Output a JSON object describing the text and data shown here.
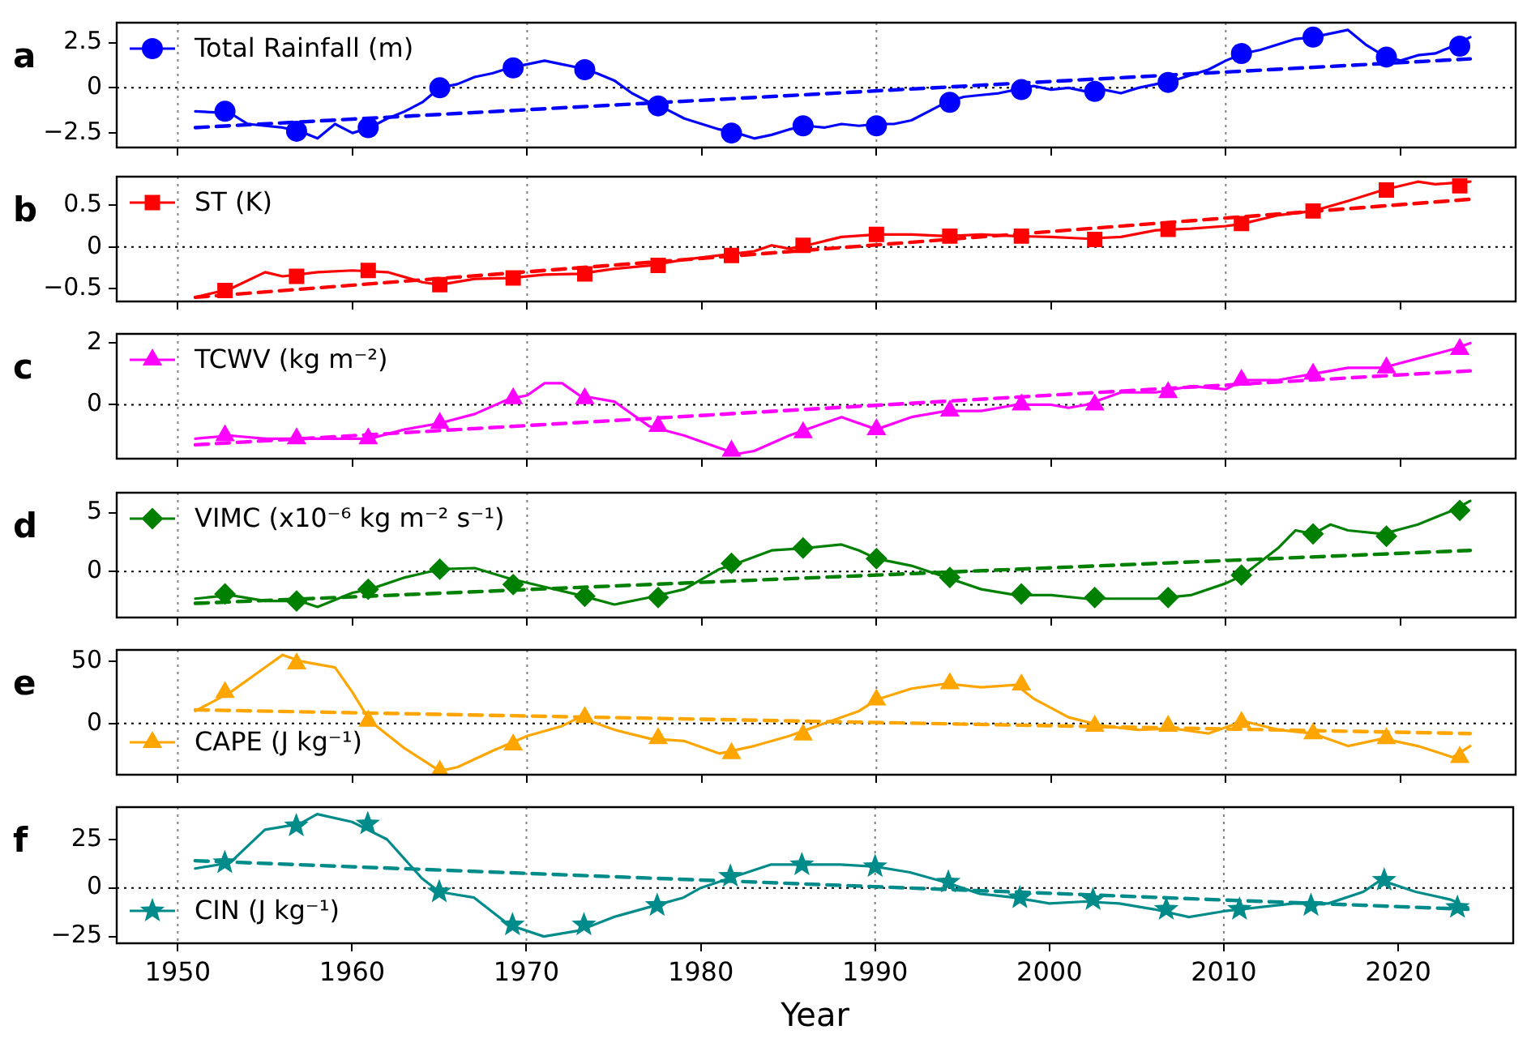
{
  "chart_data": [
    {
      "type": "line",
      "title": "a",
      "xlim": [
        1946.5,
        2026.6
      ],
      "xticks": [
        1950,
        1960,
        1970,
        1980,
        1990,
        2000,
        2010,
        2020
      ],
      "ylim": [
        -3.3,
        3.6
      ],
      "yticks": [
        -2.5,
        0.0,
        2.5
      ],
      "tick_labels": "y",
      "legend": "top left",
      "marker": "circle",
      "ref_lines": [
        {
          "axis": "x",
          "value": 1950,
          "color": "#808080",
          "line_style": "dotted"
        },
        {
          "axis": "x",
          "value": 1970,
          "color": "#808080",
          "line_style": "dotted"
        },
        {
          "axis": "x",
          "value": 1990,
          "color": "#808080",
          "line_style": "dotted"
        },
        {
          "axis": "x",
          "value": 2010,
          "color": "#808080",
          "line_style": "dotted"
        },
        {
          "axis": "y",
          "value": 0,
          "color": "#000000",
          "line_style": "dotted"
        }
      ],
      "series": [
        {
          "type": "line",
          "name": "Total Rainfall (m)",
          "marker": "none",
          "color": "#0000ff",
          "x": [
            1951,
            1953,
            1954,
            1956,
            1957,
            1958,
            1959,
            1960,
            1961,
            1962,
            1963,
            1964,
            1965,
            1966,
            1967,
            1968,
            1969,
            1970,
            1971,
            1972,
            1973,
            1974,
            1975,
            1976,
            1977,
            1978,
            1979,
            1980,
            1981,
            1982,
            1983,
            1984,
            1985,
            1986,
            1987,
            1988,
            1989,
            1990,
            1991,
            1992,
            1993,
            1994,
            1995,
            1996,
            1997,
            1998,
            1999,
            2000,
            2001,
            2002,
            2003,
            2004,
            2005,
            2006,
            2007,
            2008,
            2009,
            2010,
            2011,
            2012,
            2013,
            2014,
            2015,
            2016,
            2017,
            2018,
            2019,
            2020,
            2021,
            2022,
            2023,
            2024
          ],
          "values": [
            -1.3,
            -1.4,
            -2.0,
            -2.2,
            -2.4,
            -2.8,
            -2.0,
            -2.5,
            -2.2,
            -1.7,
            -1.3,
            -0.8,
            0.0,
            0.2,
            0.6,
            0.8,
            1.1,
            1.3,
            1.5,
            1.3,
            1.1,
            0.8,
            0.4,
            -0.3,
            -0.8,
            -1.2,
            -1.7,
            -2.0,
            -2.3,
            -2.5,
            -2.8,
            -2.6,
            -2.3,
            -2.1,
            -2.2,
            -2.0,
            -2.1,
            -2.0,
            -2.0,
            -1.8,
            -1.3,
            -0.8,
            -0.5,
            -0.4,
            -0.3,
            -0.1,
            0.1,
            -0.1,
            0.0,
            -0.2,
            -0.1,
            -0.3,
            0.0,
            0.2,
            0.4,
            0.7,
            1.0,
            1.5,
            1.9,
            2.1,
            2.4,
            2.7,
            2.8,
            3.0,
            3.2,
            2.4,
            1.8,
            1.5,
            1.8,
            1.9,
            2.3,
            2.8
          ]
        },
        {
          "type": "scatter",
          "color": "#0000ff",
          "x": [
            1952.7,
            1956.8,
            1960.9,
            1965.0,
            1969.2,
            1973.3,
            1977.5,
            1981.7,
            1985.8,
            1990.0,
            1994.2,
            1998.3,
            2002.5,
            2006.7,
            2010.9,
            2015.0,
            2019.2,
            2023.4
          ],
          "values": [
            -1.3,
            -2.4,
            -2.2,
            0.0,
            1.1,
            1.0,
            -1.0,
            -2.5,
            -2.1,
            -2.1,
            -0.8,
            -0.1,
            -0.2,
            0.3,
            1.9,
            2.8,
            1.7,
            2.3
          ]
        },
        {
          "type": "line",
          "marker": "none",
          "color": "#0000ff",
          "line_style": "dashed",
          "x": [
            1951,
            2024
          ],
          "values": [
            -2.2,
            1.6
          ]
        }
      ]
    },
    {
      "type": "line",
      "title": "b",
      "xlim": [
        1946.5,
        2026.6
      ],
      "xticks": [
        1950,
        1960,
        1970,
        1980,
        1990,
        2000,
        2010,
        2020
      ],
      "ylim": [
        -0.65,
        0.84
      ],
      "yticks": [
        -0.5,
        0.0,
        0.5
      ],
      "tick_labels": "y",
      "legend": "top left",
      "marker": "square",
      "ref_lines": [
        {
          "axis": "x",
          "value": 1950,
          "color": "#808080",
          "line_style": "dotted"
        },
        {
          "axis": "x",
          "value": 1970,
          "color": "#808080",
          "line_style": "dotted"
        },
        {
          "axis": "x",
          "value": 1990,
          "color": "#808080",
          "line_style": "dotted"
        },
        {
          "axis": "x",
          "value": 2010,
          "color": "#808080",
          "line_style": "dotted"
        },
        {
          "axis": "y",
          "value": 0,
          "color": "#000000",
          "line_style": "dotted"
        }
      ],
      "series": [
        {
          "type": "line",
          "name": "ST (K)",
          "marker": "none",
          "color": "#ff0000",
          "x": [
            1951,
            1953,
            1955,
            1956,
            1958,
            1960,
            1962,
            1964,
            1965,
            1967,
            1969,
            1971,
            1973,
            1975,
            1977,
            1979,
            1981,
            1983,
            1984,
            1985,
            1986,
            1988,
            1990,
            1992,
            1994,
            1996,
            1998,
            2000,
            2002,
            2004,
            2006,
            2008,
            2010,
            2011,
            2013,
            2015,
            2017,
            2019,
            2021,
            2022,
            2024
          ],
          "values": [
            -0.6,
            -0.5,
            -0.3,
            -0.35,
            -0.3,
            -0.28,
            -0.3,
            -0.42,
            -0.45,
            -0.38,
            -0.37,
            -0.33,
            -0.32,
            -0.26,
            -0.22,
            -0.15,
            -0.1,
            -0.05,
            0.02,
            -0.02,
            0.02,
            0.12,
            0.15,
            0.15,
            0.13,
            0.15,
            0.13,
            0.12,
            0.1,
            0.12,
            0.2,
            0.22,
            0.25,
            0.28,
            0.38,
            0.43,
            0.55,
            0.68,
            0.78,
            0.75,
            0.78
          ]
        },
        {
          "type": "scatter",
          "color": "#ff0000",
          "x": [
            1952.7,
            1956.8,
            1960.9,
            1965.0,
            1969.2,
            1973.3,
            1977.5,
            1981.7,
            1985.8,
            1990.0,
            1994.2,
            1998.3,
            2002.5,
            2006.7,
            2010.9,
            2015.0,
            2019.2,
            2023.4
          ],
          "values": [
            -0.52,
            -0.35,
            -0.28,
            -0.45,
            -0.37,
            -0.32,
            -0.22,
            -0.1,
            0.02,
            0.15,
            0.13,
            0.13,
            0.09,
            0.21,
            0.28,
            0.43,
            0.68,
            0.73
          ]
        },
        {
          "type": "line",
          "marker": "none",
          "color": "#ff0000",
          "line_style": "dashed",
          "x": [
            1951,
            2024
          ],
          "values": [
            -0.6,
            0.57
          ]
        }
      ]
    },
    {
      "type": "line",
      "title": "c",
      "xlim": [
        1946.5,
        2026.6
      ],
      "xticks": [
        1950,
        1960,
        1970,
        1980,
        1990,
        2000,
        2010,
        2020
      ],
      "ylim": [
        -1.75,
        2.3
      ],
      "yticks": [
        0,
        2
      ],
      "tick_labels": "y",
      "legend": "top left",
      "marker": "triangle",
      "ref_lines": [
        {
          "axis": "x",
          "value": 1950,
          "color": "#808080",
          "line_style": "dotted"
        },
        {
          "axis": "x",
          "value": 1970,
          "color": "#808080",
          "line_style": "dotted"
        },
        {
          "axis": "x",
          "value": 1990,
          "color": "#808080",
          "line_style": "dotted"
        },
        {
          "axis": "x",
          "value": 2010,
          "color": "#808080",
          "line_style": "dotted"
        },
        {
          "axis": "y",
          "value": 0,
          "color": "#000000",
          "line_style": "dotted"
        }
      ],
      "series": [
        {
          "type": "line",
          "name": "TCWV (kg m⁻²)",
          "marker": "none",
          "color": "#ff00ff",
          "x": [
            1951,
            1953,
            1955,
            1957,
            1959,
            1961,
            1963,
            1965,
            1967,
            1969,
            1970,
            1971,
            1972,
            1973,
            1975,
            1977,
            1979,
            1981,
            1982,
            1983,
            1985,
            1987,
            1988,
            1990,
            1992,
            1994,
            1996,
            1998,
            2000,
            2001,
            2002,
            2004,
            2006,
            2008,
            2010,
            2011,
            2013,
            2015,
            2017,
            2019,
            2021,
            2023,
            2024
          ],
          "values": [
            -1.1,
            -1.0,
            -1.1,
            -1.1,
            -1.1,
            -1.1,
            -0.8,
            -0.6,
            -0.3,
            0.2,
            0.3,
            0.7,
            0.7,
            0.3,
            0.1,
            -0.7,
            -1.0,
            -1.4,
            -1.6,
            -1.5,
            -1.0,
            -0.6,
            -0.4,
            -0.8,
            -0.4,
            -0.2,
            -0.2,
            0.0,
            0.0,
            -0.1,
            0.0,
            0.4,
            0.4,
            0.6,
            0.5,
            0.8,
            0.8,
            1.0,
            1.2,
            1.2,
            1.5,
            1.8,
            2.0
          ]
        },
        {
          "type": "scatter",
          "color": "#ff00ff",
          "x": [
            1952.7,
            1956.8,
            1960.9,
            1965.0,
            1969.2,
            1973.3,
            1977.5,
            1981.7,
            1985.8,
            1990.0,
            1994.2,
            1998.3,
            2002.5,
            2006.7,
            2010.9,
            2015.0,
            2019.2,
            2023.4
          ],
          "values": [
            -1.0,
            -1.1,
            -1.1,
            -0.6,
            0.2,
            0.2,
            -0.7,
            -1.5,
            -0.9,
            -0.8,
            -0.2,
            0.0,
            0.0,
            0.4,
            0.8,
            1.0,
            1.2,
            1.8
          ]
        },
        {
          "type": "line",
          "marker": "none",
          "color": "#ff00ff",
          "line_style": "dashed",
          "x": [
            1951,
            2024
          ],
          "values": [
            -1.3,
            1.1
          ]
        }
      ]
    },
    {
      "type": "line",
      "title": "d",
      "xlim": [
        1946.5,
        2026.6
      ],
      "xticks": [
        1950,
        1960,
        1970,
        1980,
        1990,
        2000,
        2010,
        2020
      ],
      "ylim": [
        -3.9,
        6.7
      ],
      "yticks": [
        0,
        5
      ],
      "tick_labels": "y",
      "legend": "top left",
      "marker": "diamond",
      "ref_lines": [
        {
          "axis": "x",
          "value": 1950,
          "color": "#808080",
          "line_style": "dotted"
        },
        {
          "axis": "x",
          "value": 1970,
          "color": "#808080",
          "line_style": "dotted"
        },
        {
          "axis": "x",
          "value": 1990,
          "color": "#808080",
          "line_style": "dotted"
        },
        {
          "axis": "x",
          "value": 2010,
          "color": "#808080",
          "line_style": "dotted"
        },
        {
          "axis": "y",
          "value": 0,
          "color": "#000000",
          "line_style": "dotted"
        }
      ],
      "series": [
        {
          "type": "line",
          "name": "VIMC (x10⁻⁶ kg m⁻² s⁻¹)",
          "marker": "none",
          "color": "#008000",
          "x": [
            1951,
            1953,
            1955,
            1957,
            1958,
            1960,
            1961,
            1963,
            1965,
            1967,
            1969,
            1971,
            1973,
            1975,
            1977,
            1979,
            1981,
            1982,
            1984,
            1986,
            1988,
            1989,
            1990,
            1992,
            1994,
            1996,
            1998,
            2000,
            2002,
            2004,
            2006,
            2008,
            2010,
            2011,
            2013,
            2014,
            2015,
            2016,
            2017,
            2019,
            2021,
            2023,
            2024
          ],
          "values": [
            -2.3,
            -2.0,
            -2.5,
            -2.5,
            -3.0,
            -1.8,
            -1.5,
            -0.5,
            0.2,
            0.3,
            -0.6,
            -1.3,
            -2.0,
            -2.8,
            -2.2,
            -1.5,
            0.2,
            0.7,
            1.8,
            2.0,
            2.3,
            1.8,
            1.1,
            0.5,
            -0.5,
            -1.5,
            -2.0,
            -2.0,
            -2.3,
            -2.3,
            -2.3,
            -2.0,
            -1.0,
            -0.3,
            2.0,
            3.5,
            3.2,
            4.0,
            3.5,
            3.2,
            4.0,
            5.2,
            6.0
          ]
        },
        {
          "type": "scatter",
          "color": "#008000",
          "x": [
            1952.7,
            1956.8,
            1960.9,
            1965.0,
            1969.2,
            1973.3,
            1977.5,
            1981.7,
            1985.8,
            1990.0,
            1994.2,
            1998.3,
            2002.5,
            2006.7,
            2010.9,
            2015.0,
            2019.2,
            2023.4
          ],
          "values": [
            -1.9,
            -2.5,
            -1.5,
            0.2,
            -1.1,
            -2.1,
            -2.2,
            0.7,
            2.0,
            1.1,
            -0.5,
            -1.9,
            -2.2,
            -2.2,
            -0.3,
            3.2,
            3.0,
            5.2
          ]
        },
        {
          "type": "line",
          "marker": "none",
          "color": "#008000",
          "line_style": "dashed",
          "x": [
            1951,
            2024
          ],
          "values": [
            -2.7,
            1.8
          ]
        }
      ]
    },
    {
      "type": "line",
      "title": "e",
      "xlim": [
        1946.5,
        2026.6
      ],
      "xticks": [
        1950,
        1960,
        1970,
        1980,
        1990,
        2000,
        2010,
        2020
      ],
      "ylim": [
        -41,
        59
      ],
      "yticks": [
        0,
        50
      ],
      "tick_labels": "y",
      "legend": "bottom left",
      "marker": "triangle",
      "ref_lines": [
        {
          "axis": "x",
          "value": 1950,
          "color": "#808080",
          "line_style": "dotted"
        },
        {
          "axis": "x",
          "value": 1970,
          "color": "#808080",
          "line_style": "dotted"
        },
        {
          "axis": "x",
          "value": 1990,
          "color": "#808080",
          "line_style": "dotted"
        },
        {
          "axis": "x",
          "value": 2010,
          "color": "#808080",
          "line_style": "dotted"
        },
        {
          "axis": "y",
          "value": 0,
          "color": "#000000",
          "line_style": "dotted"
        }
      ],
      "series": [
        {
          "type": "line",
          "name": "CAPE (J kg⁻¹)",
          "marker": "none",
          "color": "#ffa500",
          "x": [
            1951,
            1953,
            1955,
            1956,
            1957,
            1959,
            1960,
            1961,
            1963,
            1965,
            1966,
            1968,
            1970,
            1972,
            1973,
            1975,
            1977,
            1979,
            1981,
            1983,
            1985,
            1987,
            1989,
            1990,
            1992,
            1994,
            1996,
            1998,
            1999,
            2001,
            2003,
            2005,
            2007,
            2009,
            2011,
            2013,
            2015,
            2017,
            2019,
            2021,
            2023,
            2024
          ],
          "values": [
            10,
            25,
            45,
            55,
            50,
            45,
            25,
            2,
            -20,
            -38,
            -35,
            -22,
            -10,
            -2,
            5,
            -5,
            -12,
            -14,
            -24,
            -18,
            -10,
            0,
            10,
            19,
            28,
            32,
            29,
            31,
            20,
            5,
            -2,
            -5,
            -4,
            -8,
            2,
            -5,
            -8,
            -18,
            -12,
            -18,
            -27,
            -18
          ]
        },
        {
          "type": "scatter",
          "color": "#ffa500",
          "x": [
            1952.7,
            1956.8,
            1960.9,
            1965.0,
            1969.2,
            1973.3,
            1977.5,
            1981.7,
            1985.8,
            1990.0,
            1994.2,
            1998.3,
            2002.5,
            2006.7,
            2010.9,
            2015.0,
            2019.2,
            2023.4
          ],
          "values": [
            25,
            48,
            2,
            -38,
            -17,
            5,
            -12,
            -24,
            -9,
            19,
            32,
            31,
            -2,
            -2,
            1,
            -8,
            -12,
            -27
          ]
        },
        {
          "type": "line",
          "marker": "none",
          "color": "#ffa500",
          "line_style": "dashed",
          "x": [
            1951,
            2024
          ],
          "values": [
            11,
            -8
          ]
        }
      ]
    },
    {
      "type": "line",
      "title": "f",
      "xlabel": "Year",
      "xlim": [
        1946.5,
        2026.6
      ],
      "xticks": [
        1950,
        1960,
        1970,
        1980,
        1990,
        2000,
        2010,
        2020
      ],
      "ylim": [
        -28.5,
        41.6
      ],
      "yticks": [
        -25,
        0,
        25
      ],
      "legend": "bottom left",
      "marker": "star",
      "ref_lines": [
        {
          "axis": "x",
          "value": 1950,
          "color": "#808080",
          "line_style": "dotted"
        },
        {
          "axis": "x",
          "value": 1970,
          "color": "#808080",
          "line_style": "dotted"
        },
        {
          "axis": "x",
          "value": 1990,
          "color": "#808080",
          "line_style": "dotted"
        },
        {
          "axis": "x",
          "value": 2010,
          "color": "#808080",
          "line_style": "dotted"
        },
        {
          "axis": "y",
          "value": 0,
          "color": "#000000",
          "line_style": "dotted"
        }
      ],
      "series": [
        {
          "type": "line",
          "name": "CIN (J kg⁻¹)",
          "marker": "none",
          "color": "#008b8b",
          "x": [
            1951,
            1953,
            1955,
            1957,
            1958,
            1960,
            1962,
            1964,
            1965,
            1967,
            1969,
            1971,
            1973,
            1975,
            1977,
            1979,
            1980,
            1982,
            1984,
            1986,
            1988,
            1990,
            1992,
            1994,
            1996,
            1998,
            2000,
            2002,
            2004,
            2006,
            2008,
            2010,
            2012,
            2014,
            2016,
            2018,
            2019,
            2021,
            2023,
            2024
          ],
          "values": [
            10,
            13,
            30,
            33,
            38,
            34,
            25,
            5,
            -2,
            -5,
            -19,
            -25,
            -22,
            -15,
            -10,
            -5,
            0,
            6,
            12,
            12,
            12,
            11,
            8,
            3,
            -3,
            -5,
            -8,
            -7,
            -8,
            -11,
            -15,
            -12,
            -10,
            -8,
            -8,
            -2,
            4,
            -2,
            -6,
            -10
          ]
        },
        {
          "type": "scatter",
          "color": "#008b8b",
          "x": [
            1952.7,
            1956.8,
            1960.9,
            1965.0,
            1969.2,
            1973.3,
            1977.5,
            1981.7,
            1985.8,
            1990.0,
            1994.2,
            1998.3,
            2002.5,
            2006.7,
            2010.9,
            2015.0,
            2019.2,
            2023.4
          ],
          "values": [
            13,
            32,
            33,
            -2,
            -19,
            -19,
            -9,
            6,
            12,
            11,
            3,
            -5,
            -6,
            -11,
            -11,
            -9,
            4,
            -10
          ]
        },
        {
          "type": "line",
          "marker": "none",
          "color": "#008b8b",
          "line_style": "dashed",
          "x": [
            1951,
            2024
          ],
          "values": [
            14,
            -11
          ]
        }
      ]
    }
  ]
}
